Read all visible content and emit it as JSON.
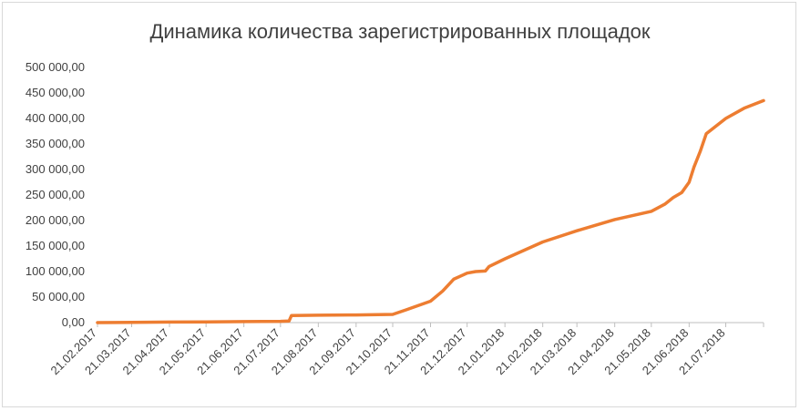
{
  "chart_data": {
    "type": "line",
    "title": "Динамика количества зарегистрированных площадок",
    "xlabel": "",
    "ylabel": "",
    "ylim": [
      0,
      500000
    ],
    "y_ticks": [
      0,
      50000,
      100000,
      150000,
      200000,
      250000,
      300000,
      350000,
      400000,
      450000,
      500000
    ],
    "y_tick_labels": [
      "0,00",
      "50 000,00",
      "100 000,00",
      "150 000,00",
      "200 000,00",
      "250 000,00",
      "300 000,00",
      "350 000,00",
      "400 000,00",
      "450 000,00",
      "500 000,00"
    ],
    "x_range": [
      "2017-02-21",
      "2018-08-21"
    ],
    "x_ticks": [
      "2017-02-21",
      "2017-03-21",
      "2017-04-21",
      "2017-05-21",
      "2017-06-21",
      "2017-07-21",
      "2017-08-21",
      "2017-09-21",
      "2017-10-21",
      "2017-11-21",
      "2017-12-21",
      "2018-01-21",
      "2018-02-21",
      "2018-03-21",
      "2018-04-21",
      "2018-05-21",
      "2018-06-21",
      "2018-07-21"
    ],
    "x_tick_labels": [
      "21.02.2017",
      "21.03.2017",
      "21.04.2017",
      "21.05.2017",
      "21.06.2017",
      "21.07.2017",
      "21.08.2017",
      "21.09.2017",
      "21.10.2017",
      "21.11.2017",
      "21.12.2017",
      "21.01.2018",
      "21.02.2018",
      "21.03.2018",
      "21.04.2018",
      "21.05.2018",
      "21.06.2018",
      "21.07.2018"
    ],
    "grid": false,
    "legend": "none",
    "color": "#ed7d31",
    "series": [
      {
        "x": [
          "2017-02-21",
          "2017-03-21",
          "2017-04-21",
          "2017-05-21",
          "2017-06-21",
          "2017-07-21",
          "2017-07-28",
          "2017-07-30",
          "2017-08-21",
          "2017-09-21",
          "2017-10-21",
          "2017-11-01",
          "2017-11-21",
          "2017-12-01",
          "2017-12-10",
          "2017-12-21",
          "2017-12-28",
          "2018-01-05",
          "2018-01-08",
          "2018-01-21",
          "2018-02-21",
          "2018-03-21",
          "2018-04-21",
          "2018-05-21",
          "2018-06-01",
          "2018-06-08",
          "2018-06-15",
          "2018-06-21",
          "2018-06-25",
          "2018-06-30",
          "2018-07-05",
          "2018-07-21",
          "2018-08-05",
          "2018-08-21"
        ],
        "y": [
          0,
          500,
          1000,
          1500,
          2000,
          2500,
          3000,
          14000,
          14500,
          15000,
          16000,
          25000,
          42000,
          62000,
          85000,
          97000,
          100000,
          101000,
          110000,
          125000,
          158000,
          180000,
          202000,
          218000,
          232000,
          245000,
          255000,
          275000,
          305000,
          335000,
          370000,
          400000,
          420000,
          435000
        ]
      }
    ]
  }
}
